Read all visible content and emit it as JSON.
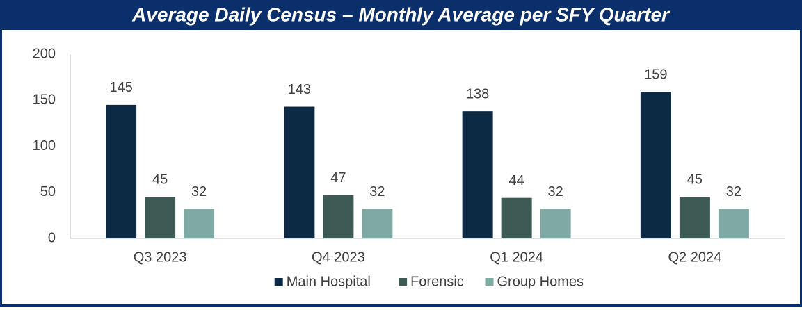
{
  "chart_data": {
    "type": "bar",
    "title": "Average Daily Census – Monthly Average per SFY Quarter",
    "categories": [
      "Q3 2023",
      "Q4 2023",
      "Q1 2024",
      "Q2 2024"
    ],
    "series": [
      {
        "name": "Main Hospital",
        "color": "#0d2a45",
        "values": [
          145,
          143,
          138,
          159
        ]
      },
      {
        "name": "Forensic",
        "color": "#3d5a55",
        "values": [
          45,
          47,
          44,
          45
        ]
      },
      {
        "name": "Group Homes",
        "color": "#7fa9a3",
        "values": [
          32,
          32,
          32,
          32
        ]
      }
    ],
    "ylim": [
      0,
      200
    ],
    "yticks": [
      0,
      50,
      100,
      150,
      200
    ],
    "grid": false,
    "legend": "bottom"
  }
}
